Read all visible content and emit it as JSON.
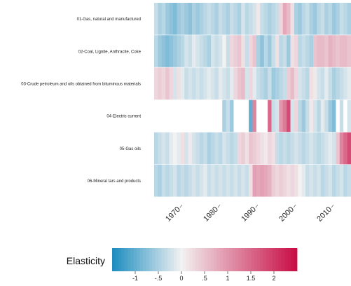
{
  "chart_data": {
    "type": "heatmap",
    "title": "",
    "years": [
      1963,
      1964,
      1965,
      1966,
      1967,
      1968,
      1969,
      1970,
      1971,
      1972,
      1973,
      1974,
      1975,
      1976,
      1977,
      1978,
      1979,
      1980,
      1981,
      1982,
      1983,
      1984,
      1985,
      1986,
      1987,
      1988,
      1989,
      1990,
      1991,
      1992,
      1993,
      1994,
      1995,
      1996,
      1997,
      1998,
      1999,
      2000,
      2001,
      2002,
      2003,
      2004,
      2005,
      2006,
      2007,
      2008,
      2009,
      2010,
      2011,
      2012,
      2013,
      2014
    ],
    "x_tick_labels": [
      "1970",
      "1980",
      "1990",
      "2000",
      "2010"
    ],
    "x_tick_values": [
      1970,
      1980,
      1990,
      2000,
      2010
    ],
    "rows": [
      {
        "label": "01-Gas, natural and manufactured",
        "values": [
          -0.3,
          -0.5,
          -0.4,
          -0.6,
          -0.7,
          -0.8,
          -0.6,
          -0.5,
          -0.6,
          -0.7,
          -0.5,
          -0.6,
          -0.5,
          -0.4,
          -0.3,
          -0.4,
          -0.5,
          -0.3,
          -0.4,
          -0.5,
          -0.3,
          -0.4,
          -0.5,
          -0.2,
          -0.4,
          -0.3,
          -0.2,
          0.1,
          -0.3,
          -0.4,
          -0.5,
          -0.4,
          -0.3,
          0.3,
          0.8,
          0.6,
          0.2,
          -0.5,
          -0.6,
          -0.4,
          -0.3,
          -0.5,
          -0.6,
          -0.4,
          -0.3,
          -0.5,
          -0.4,
          -0.6,
          -0.5,
          -0.3,
          -0.4,
          -0.5
        ]
      },
      {
        "label": "02-Coal, Lignite, Anthracite, Coke",
        "values": [
          -0.4,
          -0.6,
          -0.7,
          -0.8,
          -0.7,
          -0.6,
          -0.5,
          -0.4,
          -0.2,
          -0.3,
          -0.1,
          -0.2,
          -0.3,
          -0.4,
          -0.5,
          -0.2,
          -0.3,
          -0.2,
          0.0,
          -0.3,
          0.3,
          0.4,
          0.5,
          0.2,
          -0.3,
          0.3,
          0.5,
          -0.5,
          -0.7,
          -0.4,
          -0.6,
          -0.3,
          0.2,
          -0.4,
          -0.3,
          -0.6,
          0.2,
          0.3,
          -0.4,
          -0.3,
          -0.4,
          -0.5,
          0.5,
          0.6,
          0.6,
          0.5,
          0.7,
          0.6,
          0.5,
          0.6,
          0.6,
          0.5
        ]
      },
      {
        "label": "03-Crude petroleum and oils obtained from bituminous materials",
        "values": [
          0.3,
          0.4,
          0.3,
          0.5,
          0.3,
          -0.2,
          0.2,
          -0.1,
          -0.3,
          -0.2,
          -0.3,
          -0.2,
          -0.3,
          -0.2,
          -0.1,
          -0.2,
          -0.3,
          -0.1,
          -0.2,
          -0.3,
          -0.1,
          0.3,
          0.5,
          0.6,
          -0.2,
          0.3,
          -0.1,
          -0.3,
          -0.4,
          -0.5,
          -0.3,
          -0.6,
          -0.5,
          -0.4,
          -0.3,
          0.4,
          0.6,
          0.3,
          -0.2,
          -0.3,
          -0.4,
          0.2,
          0.1,
          -0.2,
          -0.3,
          -0.1,
          -0.3,
          -0.5,
          -0.4,
          -0.3,
          -0.2,
          -0.1
        ]
      },
      {
        "label": "04-Electric current",
        "values": [
          null,
          null,
          null,
          null,
          null,
          null,
          null,
          null,
          null,
          null,
          null,
          null,
          null,
          null,
          null,
          null,
          null,
          null,
          -0.5,
          -0.3,
          -0.6,
          null,
          null,
          null,
          null,
          -1.0,
          1.2,
          null,
          null,
          null,
          1.5,
          -0.3,
          -0.2,
          1.0,
          1.3,
          1.8,
          -0.2,
          0.3,
          -0.4,
          -0.6,
          -0.3,
          0.1,
          -0.2,
          -0.4,
          -0.1,
          -0.3,
          -0.6,
          -0.8,
          null,
          -0.3,
          null,
          -0.2
        ]
      },
      {
        "label": "05-Gas oils",
        "values": [
          -0.4,
          -0.3,
          -0.2,
          -0.3,
          -0.1,
          0.0,
          -0.1,
          0.2,
          -0.2,
          0.1,
          -0.2,
          -0.3,
          -0.4,
          -0.3,
          -0.5,
          -0.4,
          -0.3,
          -0.4,
          -0.2,
          -0.3,
          -0.4,
          -0.3,
          0.3,
          0.4,
          0.2,
          0.5,
          0.4,
          0.3,
          0.2,
          0.1,
          0.3,
          0.2,
          -0.3,
          -0.4,
          -0.3,
          -0.4,
          -0.3,
          -0.2,
          -0.3,
          -0.4,
          -0.3,
          -0.2,
          -0.3,
          -0.4,
          -0.3,
          -0.2,
          -0.1,
          -0.2,
          0.5,
          1.2,
          1.5,
          1.8
        ]
      },
      {
        "label": "06-Mineral tars and products",
        "values": [
          -0.4,
          -0.5,
          -0.3,
          -0.4,
          -0.3,
          -0.2,
          -0.4,
          -0.3,
          -0.4,
          -0.3,
          -0.2,
          -0.3,
          -0.2,
          -0.1,
          -0.3,
          -0.2,
          -0.3,
          -0.2,
          -0.3,
          -0.2,
          -0.3,
          -0.2,
          -0.3,
          -0.2,
          -0.3,
          0.2,
          0.9,
          0.8,
          0.9,
          0.8,
          0.7,
          0.4,
          0.3,
          0.4,
          0.3,
          0.2,
          0.3,
          0.2,
          0.0,
          -0.1,
          -0.3,
          -0.2,
          -0.3,
          -0.2,
          -0.4,
          -0.3,
          -0.2,
          -0.4,
          -0.3,
          -0.2,
          -0.4,
          -0.3
        ]
      }
    ],
    "legend": {
      "title": "Elasticity",
      "range": [
        -1.5,
        2.5
      ],
      "ticks": [
        "-1",
        "-.5",
        "0",
        ".5",
        "1",
        "1.5",
        "2"
      ],
      "tick_values": [
        -1,
        -0.5,
        0,
        0.5,
        1,
        1.5,
        2
      ]
    },
    "colors": {
      "low": "#1b8cbf",
      "mid": "#f2f2f2",
      "high": "#c80c44",
      "missing": "#ffffff"
    }
  }
}
